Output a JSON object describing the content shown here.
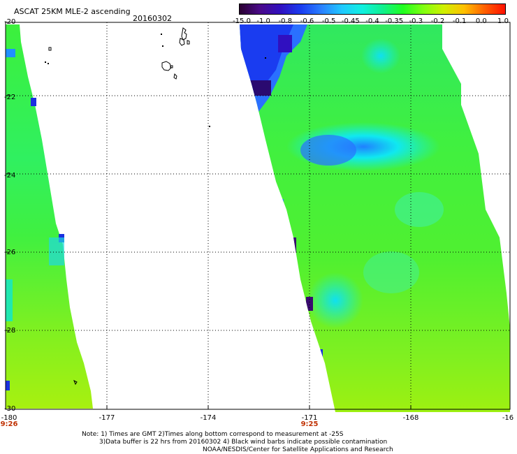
{
  "header": {
    "title": "ASCAT 25KM MLE-2 ascending",
    "date": "20160302"
  },
  "colorbar": {
    "labels": [
      "-15.0",
      "-1.0",
      "-0.8",
      "-0.6",
      "-0.5",
      "-0.45",
      "-0.4",
      "-0.35",
      "-0.3",
      "-0.2",
      "-0.1",
      "0.0",
      "1.0"
    ],
    "colors": [
      "#2a0030",
      "#4a0a8a",
      "#3010c0",
      "#1a3cf0",
      "#2a80ff",
      "#20c8ff",
      "#10f0e0",
      "#10f090",
      "#20ff20",
      "#80ff10",
      "#d0f000",
      "#ffc000",
      "#ff6000",
      "#ff1000"
    ]
  },
  "axes": {
    "lat_labels": [
      "-20",
      "-22",
      "-24",
      "-26",
      "-28",
      "-30"
    ],
    "lon_labels": [
      "-180",
      "-177",
      "-174",
      "-171",
      "-168",
      "-16"
    ]
  },
  "time_labels": [
    "9:26",
    "9:25"
  ],
  "notes": {
    "line1": "Note: 1) Times are GMT 2)Times along bottom correspond to measurement at -25S",
    "line2": "3)Data buffer is 22 hrs from 20160302 4) Black wind barbs indicate possible contamination",
    "line3": "NOAA/NESDIS/Center for Satellite Applications and Research"
  }
}
